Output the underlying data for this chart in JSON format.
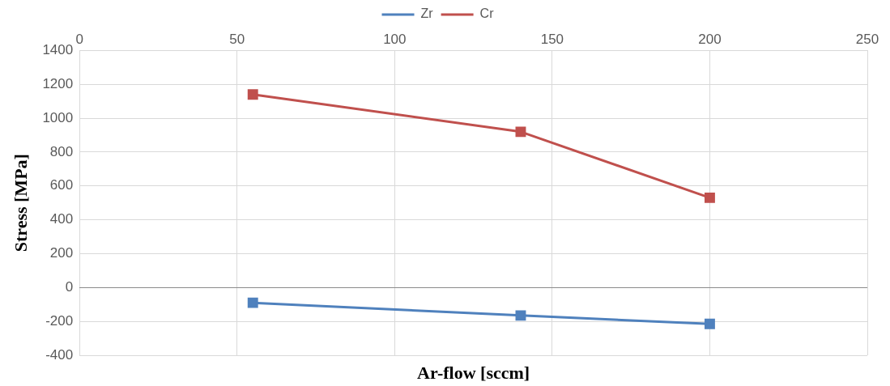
{
  "chart_data": {
    "type": "line",
    "xlabel": "Ar-flow [sccm]",
    "ylabel": "Stress [MPa]",
    "xlim": [
      0,
      250
    ],
    "xticks": [
      0,
      50,
      100,
      150,
      200,
      250
    ],
    "ylim": [
      -400,
      1400
    ],
    "yticks": [
      -400,
      -200,
      0,
      200,
      400,
      600,
      800,
      1000,
      1200,
      1400
    ],
    "series": [
      {
        "name": "Zr",
        "color": "#4f81bd",
        "x": [
          55,
          140,
          200
        ],
        "values": [
          -90,
          -165,
          -215
        ]
      },
      {
        "name": "Cr",
        "color": "#c0504d",
        "x": [
          55,
          140,
          200
        ],
        "values": [
          1140,
          920,
          530
        ]
      }
    ],
    "grid": true,
    "legend": "top",
    "marker": "square",
    "line_style": "solid"
  }
}
